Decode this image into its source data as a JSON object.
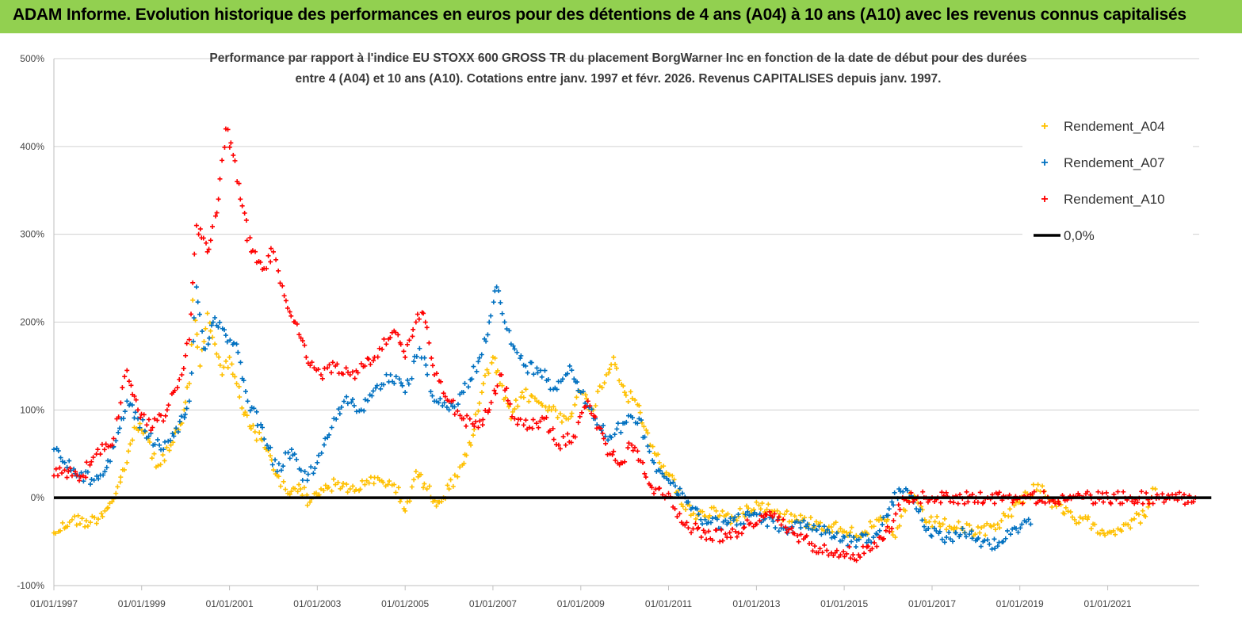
{
  "header": {
    "title": "ADAM Informe. Evolution historique des performances en euros pour des détentions de 4 ans (A04) à 10 ans (A10) avec les revenus connus capitalisés"
  },
  "chart_data": {
    "type": "scatter",
    "title_lines": [
      "Performance par rapport à l'indice EU STOXX 600 GROSS TR  du placement BorgWarner Inc en fonction de la date de début pour des durées",
      "entre 4 (A04) et 10 ans (A10).  Cotations entre janv. 1997 et févr. 2026. Revenus  CAPITALISES depuis janv. 1997."
    ],
    "ylim": [
      -100,
      500
    ],
    "xlim": [
      "1997-01-01",
      "2023-02-01"
    ],
    "y_ticks": [
      "-100%",
      "0%",
      "100%",
      "200%",
      "300%",
      "400%",
      "500%"
    ],
    "y_tick_values": [
      -100,
      0,
      100,
      200,
      300,
      400,
      500
    ],
    "x_ticks": [
      "01/01/1997",
      "01/01/1999",
      "01/01/2001",
      "01/01/2003",
      "01/01/2005",
      "01/01/2007",
      "01/01/2009",
      "01/01/2011",
      "01/01/2013",
      "01/01/2015",
      "01/01/2017",
      "01/01/2019",
      "01/01/2021"
    ],
    "x_tick_values": [
      "1997-01-01",
      "1999-01-01",
      "2001-01-01",
      "2003-01-01",
      "2005-01-01",
      "2007-01-01",
      "2009-01-01",
      "2011-01-01",
      "2013-01-01",
      "2015-01-01",
      "2017-01-01",
      "2019-01-01",
      "2021-01-01"
    ],
    "grid": "horizontal",
    "legend_position": "top-right",
    "series": [
      {
        "name": "Rendement_A04",
        "color": "#ffc000",
        "marker": "plus",
        "points": [
          [
            "1997-01-01",
            -40
          ],
          [
            "1997-06-01",
            -25
          ],
          [
            "1997-11-01",
            -28
          ],
          [
            "1998-03-01",
            -15
          ],
          [
            "1998-06-01",
            5
          ],
          [
            "1998-09-01",
            40
          ],
          [
            "1998-11-01",
            80
          ],
          [
            "1999-02-01",
            75
          ],
          [
            "1999-05-01",
            35
          ],
          [
            "1999-09-01",
            60
          ],
          [
            "1999-12-01",
            85
          ],
          [
            "2000-02-01",
            130
          ],
          [
            "2000-03-01",
            225
          ],
          [
            "2000-05-01",
            150
          ],
          [
            "2000-07-01",
            210
          ],
          [
            "2000-09-01",
            175
          ],
          [
            "2000-11-01",
            140
          ],
          [
            "2001-01-01",
            160
          ],
          [
            "2001-03-01",
            130
          ],
          [
            "2001-05-01",
            95
          ],
          [
            "2001-08-01",
            75
          ],
          [
            "2001-11-01",
            55
          ],
          [
            "2002-02-01",
            25
          ],
          [
            "2002-05-01",
            5
          ],
          [
            "2002-08-01",
            15
          ],
          [
            "2002-11-01",
            -5
          ],
          [
            "2003-02-01",
            10
          ],
          [
            "2003-06-01",
            15
          ],
          [
            "2003-10-01",
            10
          ],
          [
            "2004-02-01",
            15
          ],
          [
            "2004-06-01",
            20
          ],
          [
            "2004-10-01",
            15
          ],
          [
            "2005-01-01",
            -15
          ],
          [
            "2005-04-01",
            30
          ],
          [
            "2005-07-01",
            10
          ],
          [
            "2005-10-01",
            -5
          ],
          [
            "2006-01-01",
            10
          ],
          [
            "2006-04-01",
            35
          ],
          [
            "2006-07-01",
            60
          ],
          [
            "2006-10-01",
            120
          ],
          [
            "2007-01-01",
            160
          ],
          [
            "2007-03-01",
            130
          ],
          [
            "2007-06-01",
            90
          ],
          [
            "2007-09-01",
            120
          ],
          [
            "2008-01-01",
            110
          ],
          [
            "2008-05-01",
            100
          ],
          [
            "2008-09-01",
            90
          ],
          [
            "2009-01-01",
            120
          ],
          [
            "2009-04-01",
            100
          ],
          [
            "2009-08-01",
            140
          ],
          [
            "2009-10-01",
            160
          ],
          [
            "2010-01-01",
            120
          ],
          [
            "2010-05-01",
            105
          ],
          [
            "2010-08-01",
            60
          ],
          [
            "2010-11-01",
            35
          ],
          [
            "2011-02-01",
            25
          ],
          [
            "2011-05-01",
            -10
          ],
          [
            "2011-09-01",
            -20
          ],
          [
            "2012-02-01",
            -15
          ],
          [
            "2012-07-01",
            -25
          ],
          [
            "2013-01-01",
            -5
          ],
          [
            "2013-06-01",
            -15
          ],
          [
            "2013-12-01",
            -25
          ],
          [
            "2014-06-01",
            -30
          ],
          [
            "2014-12-01",
            -35
          ],
          [
            "2015-06-01",
            -40
          ],
          [
            "2015-12-01",
            -25
          ],
          [
            "2016-03-01",
            -45
          ],
          [
            "2016-07-01",
            5
          ],
          [
            "2016-11-01",
            -25
          ],
          [
            "2017-04-01",
            -30
          ],
          [
            "2017-09-01",
            -35
          ],
          [
            "2018-02-01",
            -40
          ],
          [
            "2018-07-01",
            -30
          ],
          [
            "2019-01-01",
            -5
          ],
          [
            "2019-06-01",
            15
          ],
          [
            "2019-11-01",
            -10
          ],
          [
            "2020-04-01",
            -25
          ],
          [
            "2020-09-01",
            -30
          ],
          [
            "2021-01-01",
            -40
          ],
          [
            "2021-06-01",
            -30
          ],
          [
            "2021-11-01",
            -20
          ],
          [
            "2022-02-01",
            10
          ]
        ]
      },
      {
        "name": "Rendement_A07",
        "color": "#0070c0",
        "marker": "plus",
        "points": [
          [
            "1997-01-01",
            55
          ],
          [
            "1997-04-01",
            40
          ],
          [
            "1997-08-01",
            25
          ],
          [
            "1997-12-01",
            20
          ],
          [
            "1998-03-01",
            30
          ],
          [
            "1998-06-01",
            65
          ],
          [
            "1998-09-01",
            110
          ],
          [
            "1998-12-01",
            90
          ],
          [
            "1999-03-01",
            70
          ],
          [
            "1999-07-01",
            55
          ],
          [
            "1999-11-01",
            75
          ],
          [
            "2000-02-01",
            110
          ],
          [
            "2000-04-01",
            240
          ],
          [
            "2000-06-01",
            170
          ],
          [
            "2000-09-01",
            205
          ],
          [
            "2000-12-01",
            185
          ],
          [
            "2001-03-01",
            175
          ],
          [
            "2001-06-01",
            110
          ],
          [
            "2001-10-01",
            80
          ],
          [
            "2002-02-01",
            30
          ],
          [
            "2002-06-01",
            55
          ],
          [
            "2002-09-01",
            20
          ],
          [
            "2003-01-01",
            40
          ],
          [
            "2003-05-01",
            80
          ],
          [
            "2003-09-01",
            115
          ],
          [
            "2004-01-01",
            100
          ],
          [
            "2004-05-01",
            125
          ],
          [
            "2004-09-01",
            140
          ],
          [
            "2005-01-01",
            120
          ],
          [
            "2005-05-01",
            170
          ],
          [
            "2005-09-01",
            110
          ],
          [
            "2006-01-01",
            100
          ],
          [
            "2006-05-01",
            120
          ],
          [
            "2006-09-01",
            155
          ],
          [
            "2006-12-01",
            200
          ],
          [
            "2007-02-01",
            240
          ],
          [
            "2007-06-01",
            175
          ],
          [
            "2007-10-01",
            150
          ],
          [
            "2008-02-01",
            145
          ],
          [
            "2008-06-01",
            125
          ],
          [
            "2008-10-01",
            150
          ],
          [
            "2009-01-01",
            120
          ],
          [
            "2009-05-01",
            90
          ],
          [
            "2009-09-01",
            70
          ],
          [
            "2010-01-01",
            85
          ],
          [
            "2010-05-01",
            90
          ],
          [
            "2010-09-01",
            40
          ],
          [
            "2011-01-01",
            20
          ],
          [
            "2011-06-01",
            -5
          ],
          [
            "2011-11-01",
            -25
          ],
          [
            "2012-05-01",
            -30
          ],
          [
            "2012-11-01",
            -20
          ],
          [
            "2013-03-01",
            -25
          ],
          [
            "2013-09-01",
            -35
          ],
          [
            "2014-03-01",
            -30
          ],
          [
            "2014-09-01",
            -40
          ],
          [
            "2015-03-01",
            -50
          ],
          [
            "2015-09-01",
            -45
          ],
          [
            "2016-01-01",
            -20
          ],
          [
            "2016-04-01",
            10
          ],
          [
            "2016-08-01",
            -5
          ],
          [
            "2016-12-01",
            -35
          ],
          [
            "2017-05-01",
            -45
          ],
          [
            "2017-10-01",
            -40
          ],
          [
            "2018-03-01",
            -50
          ],
          [
            "2018-07-01",
            -55
          ],
          [
            "2018-12-01",
            -35
          ],
          [
            "2019-04-01",
            -30
          ]
        ]
      },
      {
        "name": "Rendement_A10",
        "color": "#ff0000",
        "marker": "plus",
        "points": [
          [
            "1997-01-01",
            25
          ],
          [
            "1997-05-01",
            30
          ],
          [
            "1997-09-01",
            25
          ],
          [
            "1998-01-01",
            55
          ],
          [
            "1998-05-01",
            60
          ],
          [
            "1998-09-01",
            145
          ],
          [
            "1998-12-01",
            100
          ],
          [
            "1999-04-01",
            80
          ],
          [
            "1999-08-01",
            100
          ],
          [
            "1999-12-01",
            140
          ],
          [
            "2000-02-01",
            180
          ],
          [
            "2000-04-01",
            310
          ],
          [
            "2000-07-01",
            280
          ],
          [
            "2000-10-01",
            340
          ],
          [
            "2000-12-01",
            420
          ],
          [
            "2001-02-01",
            390
          ],
          [
            "2001-04-01",
            340
          ],
          [
            "2001-07-01",
            280
          ],
          [
            "2001-10-01",
            260
          ],
          [
            "2002-01-01",
            280
          ],
          [
            "2002-04-01",
            230
          ],
          [
            "2002-07-01",
            200
          ],
          [
            "2002-10-01",
            160
          ],
          [
            "2003-02-01",
            140
          ],
          [
            "2003-06-01",
            150
          ],
          [
            "2003-10-01",
            140
          ],
          [
            "2004-02-01",
            150
          ],
          [
            "2004-06-01",
            170
          ],
          [
            "2004-10-01",
            190
          ],
          [
            "2005-01-01",
            160
          ],
          [
            "2005-04-01",
            200
          ],
          [
            "2005-06-01",
            210
          ],
          [
            "2005-09-01",
            140
          ],
          [
            "2006-01-01",
            110
          ],
          [
            "2006-05-01",
            90
          ],
          [
            "2006-09-01",
            80
          ],
          [
            "2006-12-01",
            100
          ],
          [
            "2007-03-01",
            140
          ],
          [
            "2007-07-01",
            90
          ],
          [
            "2007-11-01",
            80
          ],
          [
            "2008-03-01",
            90
          ],
          [
            "2008-07-01",
            60
          ],
          [
            "2008-11-01",
            70
          ],
          [
            "2009-03-01",
            110
          ],
          [
            "2009-06-01",
            80
          ],
          [
            "2009-09-01",
            50
          ],
          [
            "2009-12-01",
            40
          ],
          [
            "2010-03-01",
            60
          ],
          [
            "2010-06-01",
            40
          ],
          [
            "2010-09-01",
            5
          ],
          [
            "2011-01-01",
            5
          ],
          [
            "2011-05-01",
            -30
          ],
          [
            "2011-11-01",
            -40
          ],
          [
            "2012-05-01",
            -45
          ],
          [
            "2012-11-01",
            -30
          ],
          [
            "2013-05-01",
            -20
          ],
          [
            "2013-11-01",
            -40
          ],
          [
            "2014-05-01",
            -55
          ],
          [
            "2014-11-01",
            -60
          ],
          [
            "2015-05-01",
            -65
          ],
          [
            "2015-11-01",
            -45
          ],
          [
            "2016-02-01",
            -35
          ],
          [
            "2016-05-01",
            0
          ],
          [
            "2017-01-01",
            0
          ],
          [
            "2018-01-01",
            0
          ],
          [
            "2019-01-01",
            0
          ],
          [
            "2020-01-01",
            0
          ],
          [
            "2021-01-01",
            0
          ],
          [
            "2022-01-01",
            0
          ],
          [
            "2023-01-01",
            0
          ]
        ]
      },
      {
        "name": "0,0%",
        "color": "#000000",
        "marker": "line",
        "points": [
          [
            "1997-01-01",
            0
          ],
          [
            "2023-01-01",
            0
          ]
        ]
      }
    ]
  }
}
